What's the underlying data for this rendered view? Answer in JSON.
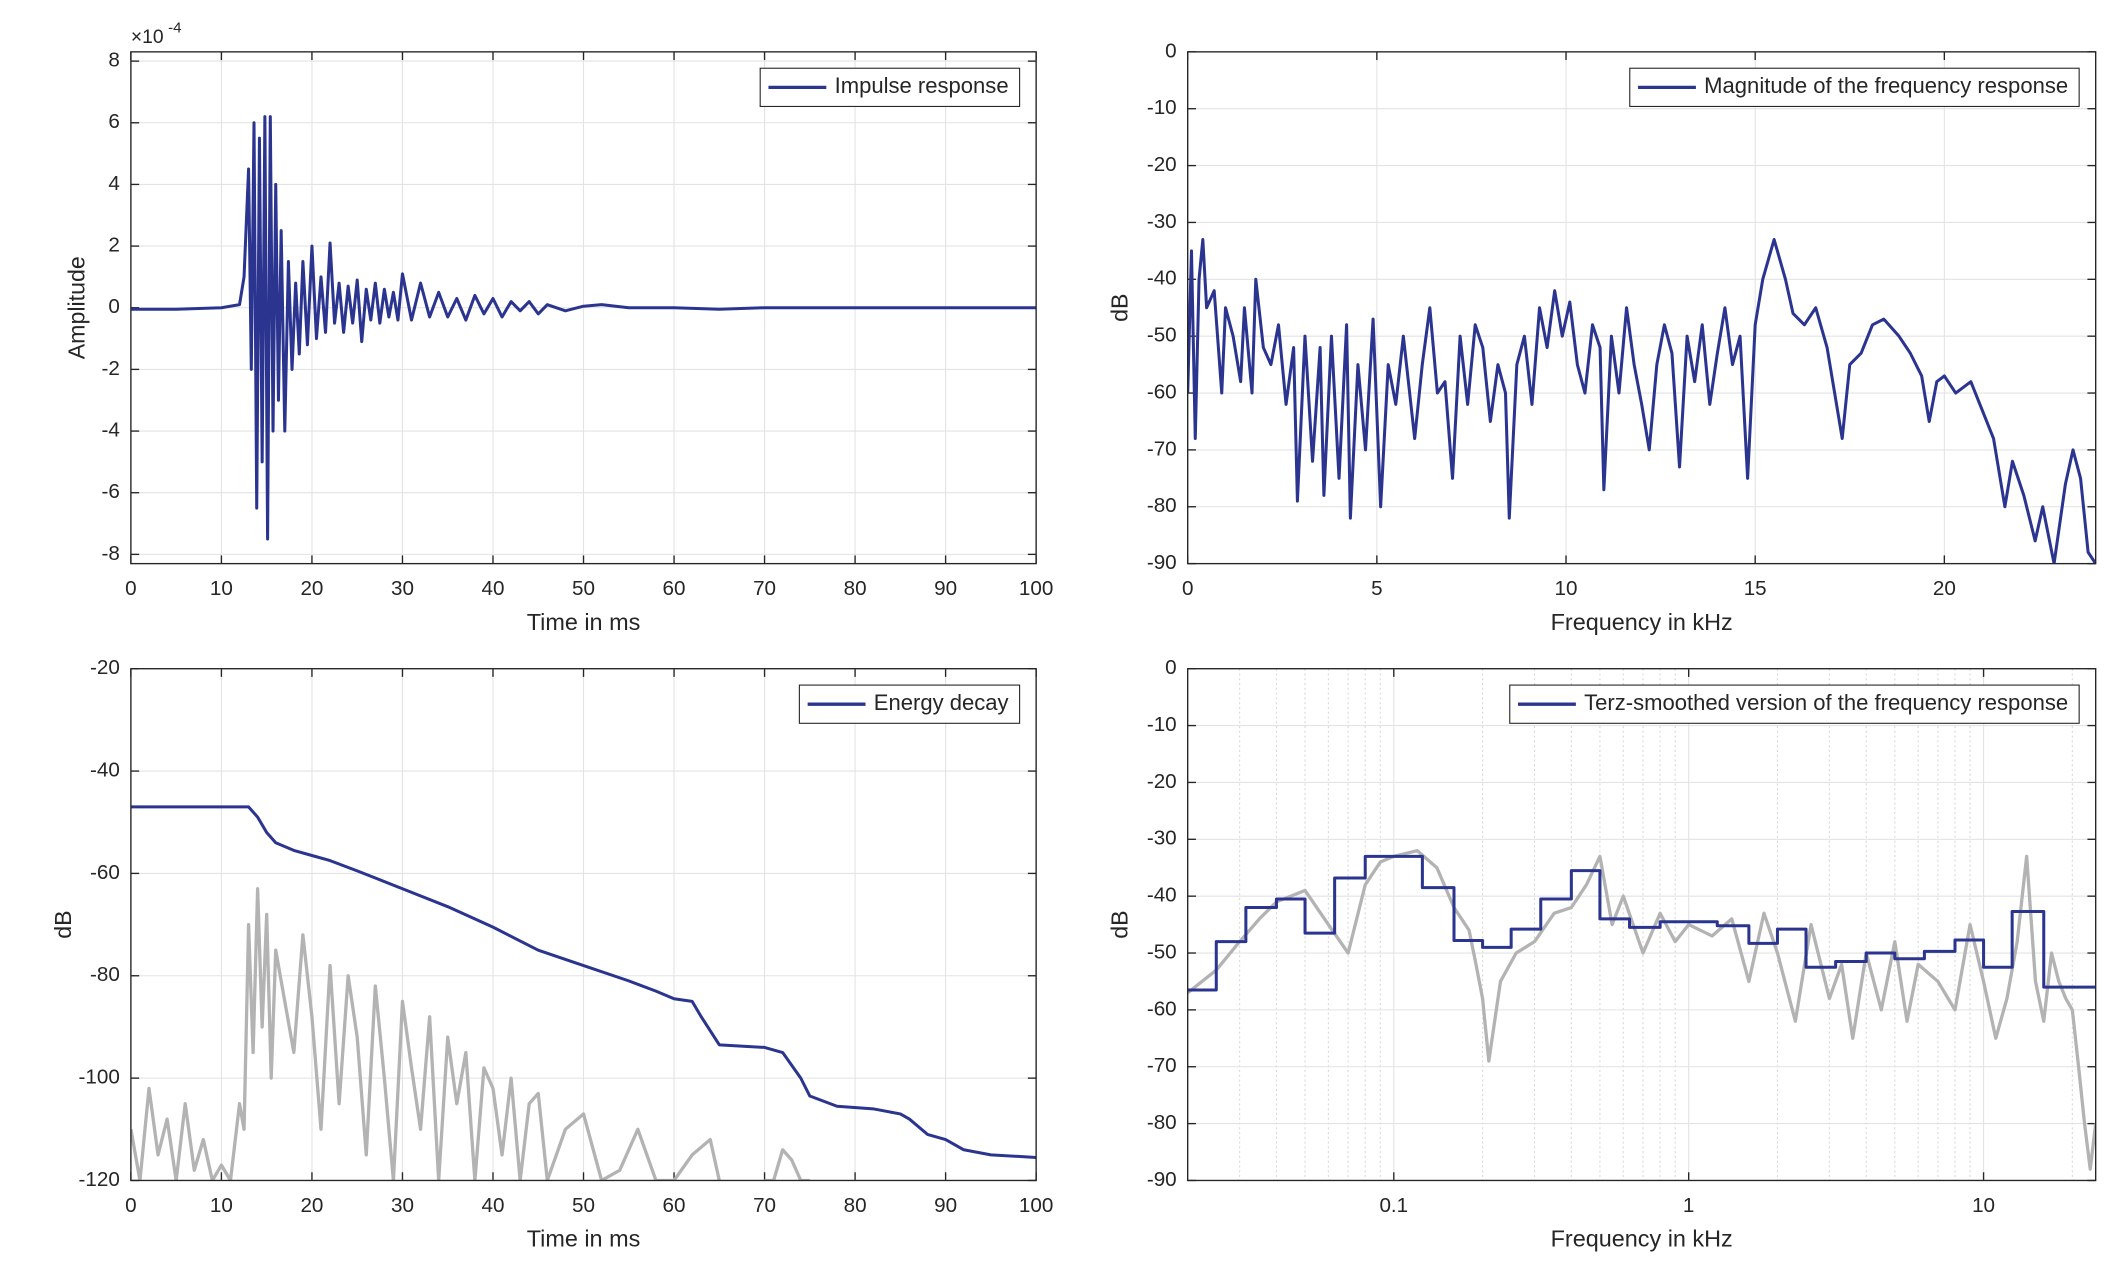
{
  "chart_data": [
    {
      "type": "line",
      "xlabel": "Time in ms",
      "ylabel": "Amplitude",
      "y_exponent": {
        "base": "×10",
        "power": "-4"
      },
      "xlim": [
        0,
        100
      ],
      "ylim": [
        -8.3,
        8.3
      ],
      "xticks": [
        0,
        10,
        20,
        30,
        40,
        50,
        60,
        70,
        80,
        90,
        100
      ],
      "yticks": [
        -8,
        -6,
        -4,
        -2,
        0,
        2,
        4,
        6,
        8
      ],
      "grid": true,
      "legend": "northeast",
      "x": [
        0,
        5,
        10,
        12,
        12.5,
        13,
        13.3,
        13.6,
        13.9,
        14.2,
        14.5,
        14.8,
        15.1,
        15.4,
        15.7,
        16,
        16.3,
        16.6,
        17,
        17.4,
        17.8,
        18.2,
        18.6,
        19,
        19.5,
        20,
        20.5,
        21,
        21.5,
        22,
        22.5,
        23,
        23.5,
        24,
        24.5,
        25,
        25.5,
        26,
        26.5,
        27,
        27.5,
        28,
        28.5,
        29,
        29.5,
        30,
        31,
        32,
        33,
        34,
        35,
        36,
        37,
        38,
        39,
        40,
        41,
        42,
        43,
        44,
        45,
        46,
        48,
        50,
        52,
        55,
        60,
        65,
        70,
        80,
        90,
        100
      ],
      "series": [
        {
          "name": "Impulse response",
          "color": "#2b3590",
          "values": [
            -0.05,
            -0.05,
            0,
            0.1,
            1,
            4.5,
            -2,
            6,
            -6.5,
            5.5,
            -5,
            6.2,
            -7.5,
            6.2,
            -4,
            4,
            -3,
            2.5,
            -4,
            1.5,
            -2,
            0.8,
            -1.5,
            1.5,
            -1.2,
            2,
            -1,
            1,
            -0.8,
            2.1,
            -0.5,
            0.8,
            -0.8,
            0.7,
            -0.5,
            0.9,
            -1.1,
            0.6,
            -0.4,
            0.8,
            -0.5,
            0.6,
            -0.3,
            0.5,
            -0.4,
            1.1,
            -0.4,
            0.8,
            -0.3,
            0.5,
            -0.3,
            0.3,
            -0.4,
            0.4,
            -0.2,
            0.3,
            -0.3,
            0.2,
            -0.1,
            0.2,
            -0.2,
            0.1,
            -0.1,
            0.05,
            0.1,
            0,
            0,
            -0.05,
            0,
            0,
            0,
            0
          ]
        }
      ]
    },
    {
      "type": "line",
      "xlabel": "Frequency in kHz",
      "ylabel": "dB",
      "xlim": [
        0,
        24
      ],
      "ylim": [
        -90,
        0
      ],
      "xticks": [
        0,
        5,
        10,
        15,
        20
      ],
      "yticks": [
        0,
        -10,
        -20,
        -30,
        -40,
        -50,
        -60,
        -70,
        -80,
        -90
      ],
      "grid": true,
      "legend": "northeast",
      "x": [
        0,
        0.1,
        0.2,
        0.3,
        0.4,
        0.5,
        0.7,
        0.9,
        1.0,
        1.2,
        1.4,
        1.5,
        1.7,
        1.8,
        2.0,
        2.2,
        2.4,
        2.6,
        2.8,
        2.9,
        3.1,
        3.3,
        3.5,
        3.6,
        3.8,
        4.0,
        4.2,
        4.3,
        4.5,
        4.7,
        4.9,
        5.1,
        5.3,
        5.5,
        5.7,
        6.0,
        6.2,
        6.4,
        6.6,
        6.8,
        7.0,
        7.2,
        7.4,
        7.6,
        7.8,
        8.0,
        8.2,
        8.4,
        8.5,
        8.7,
        8.9,
        9.1,
        9.3,
        9.5,
        9.7,
        9.9,
        10.1,
        10.3,
        10.5,
        10.7,
        10.9,
        11.0,
        11.2,
        11.4,
        11.6,
        11.8,
        12.0,
        12.2,
        12.4,
        12.6,
        12.8,
        13.0,
        13.2,
        13.4,
        13.6,
        13.8,
        14.0,
        14.2,
        14.4,
        14.6,
        14.8,
        15.0,
        15.2,
        15.5,
        15.8,
        16.0,
        16.3,
        16.6,
        16.9,
        17.1,
        17.3,
        17.5,
        17.8,
        18.1,
        18.4,
        18.8,
        19.1,
        19.4,
        19.6,
        19.8,
        20.0,
        20.3,
        20.7,
        21.0,
        21.3,
        21.6,
        21.8,
        22.1,
        22.4,
        22.6,
        22.9,
        23.2,
        23.4,
        23.6,
        23.8,
        24.0
      ],
      "series": [
        {
          "name": "Magnitude of the frequency response",
          "color": "#2b3590",
          "values": [
            -60,
            -35,
            -68,
            -40,
            -33,
            -45,
            -42,
            -60,
            -45,
            -50,
            -58,
            -45,
            -60,
            -40,
            -52,
            -55,
            -48,
            -62,
            -52,
            -79,
            -50,
            -72,
            -52,
            -78,
            -50,
            -75,
            -48,
            -82,
            -55,
            -70,
            -47,
            -80,
            -55,
            -62,
            -50,
            -68,
            -55,
            -45,
            -60,
            -58,
            -75,
            -50,
            -62,
            -48,
            -52,
            -65,
            -55,
            -60,
            -82,
            -55,
            -50,
            -62,
            -45,
            -52,
            -42,
            -50,
            -44,
            -55,
            -60,
            -48,
            -52,
            -77,
            -50,
            -60,
            -45,
            -55,
            -62,
            -70,
            -55,
            -48,
            -53,
            -73,
            -50,
            -58,
            -48,
            -62,
            -53,
            -45,
            -55,
            -50,
            -75,
            -48,
            -40,
            -33,
            -40,
            -46,
            -48,
            -45,
            -52,
            -60,
            -68,
            -55,
            -53,
            -48,
            -47,
            -50,
            -53,
            -57,
            -65,
            -58,
            -57,
            -60,
            -58,
            -63,
            -68,
            -80,
            -72,
            -78,
            -86,
            -80,
            -90,
            -76,
            -70,
            -75,
            -88,
            -90
          ]
        }
      ]
    },
    {
      "type": "line",
      "xlabel": "Time in ms",
      "ylabel": "dB",
      "xlim": [
        0,
        100
      ],
      "ylim": [
        -120,
        -20
      ],
      "xticks": [
        0,
        10,
        20,
        30,
        40,
        50,
        60,
        70,
        80,
        90,
        100
      ],
      "yticks": [
        -120,
        -100,
        -80,
        -60,
        -40,
        -20
      ],
      "grid": true,
      "legend": "northeast",
      "series": [
        {
          "color": "#b3b3b3",
          "x": [
            0,
            1,
            2,
            3,
            4,
            5,
            6,
            7,
            8,
            9,
            10,
            11,
            12,
            12.5,
            13,
            13.5,
            14,
            14.5,
            15,
            15.5,
            16,
            17,
            18,
            19,
            20,
            21,
            22,
            23,
            24,
            25,
            26,
            27,
            28,
            29,
            30,
            31,
            32,
            33,
            34,
            35,
            36,
            37,
            38,
            39,
            40,
            41,
            42,
            43,
            44,
            45,
            46,
            48,
            50,
            52,
            54,
            56,
            58,
            60,
            62,
            64,
            65,
            66,
            70,
            71,
            72,
            73,
            74,
            75
          ],
          "values": [
            -110,
            -120,
            -102,
            -115,
            -108,
            -120,
            -105,
            -118,
            -112,
            -120,
            -117,
            -120,
            -105,
            -110,
            -70,
            -95,
            -63,
            -90,
            -68,
            -100,
            -75,
            -85,
            -95,
            -72,
            -88,
            -110,
            -78,
            -105,
            -80,
            -92,
            -115,
            -82,
            -100,
            -120,
            -85,
            -98,
            -110,
            -88,
            -120,
            -92,
            -105,
            -95,
            -120,
            -98,
            -102,
            -115,
            -100,
            -120,
            -105,
            -103,
            -120,
            -110,
            -107,
            -120,
            -118,
            -110,
            -120,
            -120,
            -115,
            -112,
            -120,
            null,
            -120,
            -120,
            -114,
            -116,
            -120,
            -120
          ]
        },
        {
          "name": "Energy decay",
          "color": "#2b3590",
          "x": [
            0,
            13,
            14,
            15,
            16,
            18,
            20,
            22,
            25,
            30,
            35,
            40,
            45,
            50,
            55,
            58,
            60,
            62,
            63,
            65,
            70,
            72,
            74,
            75,
            78,
            82,
            85,
            86,
            88,
            90,
            92,
            95,
            100
          ],
          "values": [
            -47,
            -47,
            -49,
            -52,
            -54,
            -55.5,
            -56.5,
            -57.5,
            -59.5,
            -63,
            -66.5,
            -70.5,
            -75,
            -78,
            -81,
            -83,
            -84.5,
            -85,
            -88,
            -93.5,
            -94,
            -95,
            -100,
            -103.5,
            -105.5,
            -106,
            -107,
            -108,
            -111,
            -112,
            -114,
            -115,
            -115.5
          ]
        }
      ]
    },
    {
      "type": "line",
      "xlabel": "Frequency in kHz",
      "ylabel": "dB",
      "xscale": "log",
      "xlim": [
        0.02,
        24
      ],
      "ylim": [
        -90,
        0
      ],
      "xticks": [
        0.1,
        1,
        10
      ],
      "yticks": [
        0,
        -10,
        -20,
        -30,
        -40,
        -50,
        -60,
        -70,
        -80,
        -90
      ],
      "grid": true,
      "minor_grid": true,
      "legend": "northeast",
      "series": [
        {
          "color": "#b3b3b3",
          "x": [
            0.02,
            0.025,
            0.03,
            0.035,
            0.04,
            0.05,
            0.06,
            0.07,
            0.08,
            0.09,
            0.1,
            0.12,
            0.14,
            0.16,
            0.18,
            0.19,
            0.2,
            0.21,
            0.23,
            0.26,
            0.3,
            0.35,
            0.4,
            0.45,
            0.5,
            0.55,
            0.6,
            0.7,
            0.8,
            0.9,
            1,
            1.2,
            1.4,
            1.6,
            1.8,
            2,
            2.3,
            2.6,
            3,
            3.3,
            3.6,
            4,
            4.5,
            5,
            5.5,
            6,
            7,
            8,
            9,
            10,
            11,
            12,
            13,
            14,
            15,
            16,
            17,
            18,
            19,
            20,
            21,
            22,
            23,
            24
          ],
          "values": [
            -57,
            -53,
            -48,
            -44,
            -41,
            -39,
            -45,
            -50,
            -38,
            -34,
            -33,
            -32,
            -35,
            -42,
            -46,
            -52,
            -58,
            -69,
            -55,
            -50,
            -48,
            -43,
            -42,
            -38,
            -33,
            -45,
            -40,
            -50,
            -43,
            -48,
            -45,
            -47,
            -44,
            -55,
            -43,
            -50,
            -62,
            -45,
            -58,
            -52,
            -65,
            -50,
            -60,
            -48,
            -62,
            -52,
            -55,
            -60,
            -45,
            -55,
            -65,
            -58,
            -48,
            -33,
            -55,
            -62,
            -50,
            -55,
            -58,
            -60,
            -70,
            -80,
            -88,
            -80
          ]
        },
        {
          "name": "Terz-smoothed version of the frequency response",
          "color": "#2b3590",
          "step": "post",
          "x": [
            0.02,
            0.025,
            0.0315,
            0.04,
            0.05,
            0.063,
            0.08,
            0.1,
            0.125,
            0.16,
            0.2,
            0.25,
            0.315,
            0.4,
            0.5,
            0.63,
            0.8,
            1,
            1.25,
            1.6,
            2,
            2.5,
            3.15,
            4,
            5,
            6.3,
            8,
            10,
            12.5,
            16,
            20,
            24
          ],
          "values": [
            -56.5,
            -48,
            -42,
            -40.5,
            -46.5,
            -36.8,
            -33,
            -33,
            -38.5,
            -47.8,
            -49,
            -45.8,
            -40.5,
            -35.5,
            -44,
            -45.5,
            -44.5,
            -44.5,
            -45.2,
            -48.3,
            -45.8,
            -52.5,
            -51.5,
            -50,
            -51,
            -49.7,
            -47.7,
            -52.5,
            -42.7,
            -56,
            -56,
            -56
          ]
        }
      ]
    }
  ]
}
